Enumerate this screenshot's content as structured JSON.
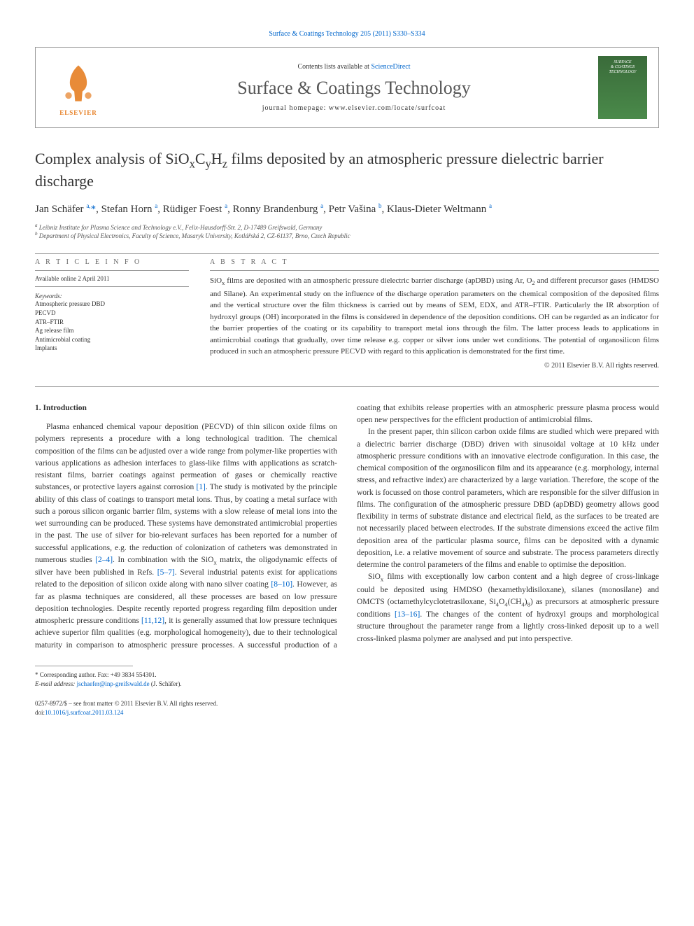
{
  "top_link": {
    "text": "Surface & Coatings Technology 205 (2011) S330–S334",
    "href": "#"
  },
  "header": {
    "contents_prefix": "Contents lists available at ",
    "contents_link": "ScienceDirect",
    "journal": "Surface & Coatings Technology",
    "homepage_prefix": "journal homepage: ",
    "homepage": "www.elsevier.com/locate/surfcoat",
    "elsevier": "ELSEVIER",
    "cover_line1": "SURFACE",
    "cover_line2": "& COATINGS",
    "cover_line3": "TECHNOLOGY"
  },
  "title_html": "Complex analysis of SiO<sub>x</sub>C<sub>y</sub>H<sub>z</sub> films deposited by an atmospheric pressure dielectric barrier discharge",
  "authors_html": "Jan Schäfer <sup>a,</sup><span class='star'>*</span>, Stefan Horn <sup>a</sup>, Rüdiger Foest <sup>a</sup>, Ronny Brandenburg <sup>a</sup>, Petr Vašina <sup>b</sup>, Klaus-Dieter Weltmann <sup>a</sup>",
  "affiliations": {
    "a": "Leibniz Institute for Plasma Science and Technology e.V., Felix-Hausdorff-Str. 2, D-17489 Greifswald, Germany",
    "b": "Department of Physical Electronics, Faculty of Science, Masaryk University, Kotlářská 2, CZ-61137, Brno, Czech Republic"
  },
  "meta": {
    "info_heading": "A R T I C L E   I N F O",
    "available": "Available online 2 April 2011",
    "keywords_label": "Keywords:",
    "keywords": [
      "Atmospheric pressure DBD",
      "PECVD",
      "ATR–FTIR",
      "Ag release film",
      "Antimicrobial coating",
      "Implants"
    ]
  },
  "abstract": {
    "heading": "A B S T R A C T",
    "text_html": "SiO<sub>x</sub> films are deposited with an atmospheric pressure dielectric barrier discharge (apDBD) using Ar, O<sub>2</sub> and different precursor gases (HMDSO and Silane). An experimental study on the influence of the discharge operation parameters on the chemical composition of the deposited films and the vertical structure over the film thickness is carried out by means of SEM, EDX, and ATR–FTIR. Particularly the IR absorption of hydroxyl groups (OH) incorporated in the films is considered in dependence of the deposition conditions. OH can be regarded as an indicator for the barrier properties of the coating or its capability to transport metal ions through the film. The latter process leads to applications in antimicrobial coatings that gradually, over time release e.g. copper or silver ions under wet conditions. The potential of organosilicon films produced in such an atmospheric pressure PECVD with regard to this application is demonstrated for the first time.",
    "copyright": "© 2011 Elsevier B.V. All rights reserved."
  },
  "body": {
    "section_heading": "1. Introduction",
    "p1_html": "Plasma enhanced chemical vapour deposition (PECVD) of thin silicon oxide films on polymers represents a procedure with a long technological tradition. The chemical composition of the films can be adjusted over a wide range from polymer-like properties with various applications as adhesion interfaces to glass-like films with applications as scratch-resistant films, barrier coatings against permeation of gases or chemically reactive substances, or protective layers against corrosion <span class='ref'>[1]</span>. The study is motivated by the principle ability of this class of coatings to transport metal ions. Thus, by coating a metal surface with such a porous silicon organic barrier film, systems with a slow release of metal ions into the wet surrounding can be produced. These systems have demonstrated antimicrobial properties in the past. The use of silver for bio-relevant surfaces has been reported for a number of successful applications, e.g. the reduction of colonization of catheters was demonstrated in numerous studies <span class='ref'>[2–4]</span>. In combination with the SiO<sub>x</sub> matrix, the oligodynamic effects of silver have been published in Refs. <span class='ref'>[5–7]</span>. Several industrial patents exist for applications related to the deposition of silicon oxide along with nano silver coating <span class='ref'>[8–10]</span>. However, as far as plasma techniques are considered, all these processes are based on low pressure deposition technologies. Despite recently reported progress regarding film deposition under atmospheric pressure conditions <span class='ref'>[11,12]</span>, it is generally assumed that low pressure techniques achieve superior film qualities (e.g. morphological homogeneity), due to their technological maturity in comparison to atmospheric pressure processes. A successful production of a coating that exhibits release properties with an atmospheric pressure plasma process would open new perspectives for the efficient production of antimicrobial films.",
    "p2_html": "In the present paper, thin silicon carbon oxide films are studied which were prepared with a dielectric barrier discharge (DBD) driven with sinusoidal voltage at 10 kHz under atmospheric pressure conditions with an innovative electrode configuration. In this case, the chemical composition of the organosilicon film and its appearance (e.g. morphology, internal stress, and refractive index) are characterized by a large variation. Therefore, the scope of the work is focussed on those control parameters, which are responsible for the silver diffusion in films. The configuration of the atmospheric pressure DBD (apDBD) geometry allows good flexibility in terms of substrate distance and electrical field, as the surfaces to be treated are not necessarily placed between electrodes. If the substrate dimensions exceed the active film deposition area of the particular plasma source, films can be deposited with a dynamic deposition, i.e. a relative movement of source and substrate. The process parameters directly determine the control parameters of the films and enable to optimise the deposition.",
    "p3_html": "SiO<sub>x</sub> films with exceptionally low carbon content and a high degree of cross-linkage could be deposited using HMDSO (hexamethyldisiloxane), silanes (monosilane) and OMCTS (octamethylcyclotetrasiloxane, Si<sub>4</sub>O<sub>4</sub>(CH<sub>4</sub>)<sub>8</sub>) as precursors at atmospheric pressure conditions <span class='ref'>[13–16]</span>. The changes of the content of hydroxyl groups and morphological structure throughout the parameter range from a lightly cross-linked deposit up to a well cross-linked plasma polymer are analysed and put into perspective."
  },
  "footnotes": {
    "corr": "* Corresponding author. Fax: +49 3834 554301.",
    "email_label": "E-mail address:",
    "email": "jschaefer@inp-greifswald.de",
    "email_suffix": " (J. Schäfer)."
  },
  "bottom": {
    "line1": "0257-8972/$ – see front matter © 2011 Elsevier B.V. All rights reserved.",
    "doi_prefix": "doi:",
    "doi": "10.1016/j.surfcoat.2011.03.124"
  },
  "colors": {
    "link": "#0066cc",
    "elsevier_orange": "#e67e22",
    "cover_green_top": "#3a6b3a",
    "cover_green_bot": "#4a8a4a"
  }
}
